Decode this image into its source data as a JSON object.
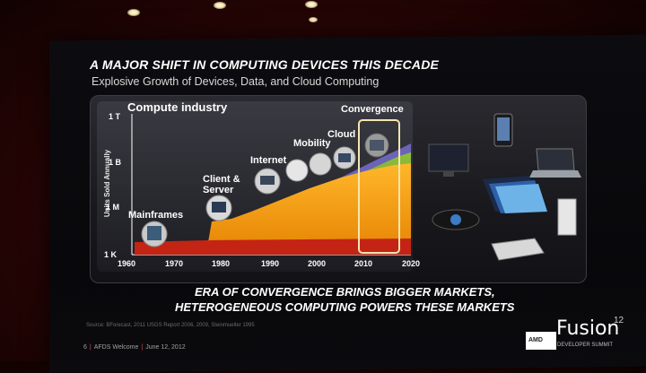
{
  "slide": {
    "title": "A MAJOR SHIFT IN COMPUTING DEVICES THIS DECADE",
    "subtitle": "Explosive Growth of Devices, Data, and Cloud Computing",
    "bottom_line_1": "ERA OF CONVERGENCE BRINGS BIGGER MARKETS,",
    "bottom_line_2": "HETEROGENEOUS COMPUTING POWERS THESE MARKETS",
    "source": "Source: BForecast, 2011 USGS Report 2006, 2009, Steinmueller 1995",
    "footer_page": "6",
    "footer_event": "AFDS Welcome",
    "footer_date": "June 12, 2012",
    "brand_amd": "AMD",
    "brand_fusion": "Fusion",
    "brand_year": "12",
    "brand_sub": "DEVELOPER SUMMIT"
  },
  "chart_data": {
    "type": "area",
    "title": "Compute industry",
    "ylabel": "Units Sold Annually",
    "xlabel": "",
    "x_ticks": [
      "1960",
      "1970",
      "1980",
      "1990",
      "2000",
      "2010",
      "2020"
    ],
    "y_ticks": [
      "1 K",
      "1 M",
      "1 B",
      "1 T"
    ],
    "log_scale_y": true,
    "grid": false,
    "annotations": [
      "Mainframes",
      "Client &",
      "Server",
      "Internet",
      "Mobility",
      "Cloud",
      "Convergence"
    ],
    "highlight_range_x": [
      2009,
      2018
    ],
    "series": [
      {
        "x": [
          1960,
          1980,
          1982,
          1990,
          2000,
          2005,
          2010,
          2018
        ],
        "values": [
          1000,
          3000,
          300000,
          5000000,
          30000000,
          100000000,
          300000000,
          2000000000
        ]
      },
      {
        "x": [
          1990,
          2000,
          2005,
          2010,
          2018
        ],
        "values": [
          0,
          1000000,
          10000000,
          100000000,
          1000000000
        ]
      }
    ],
    "colors": {
      "orange": "#f5a015",
      "green": "#7fae2a",
      "purple": "#6c64b8",
      "red": "#c42414",
      "highlight": "#f4e6b0"
    }
  }
}
